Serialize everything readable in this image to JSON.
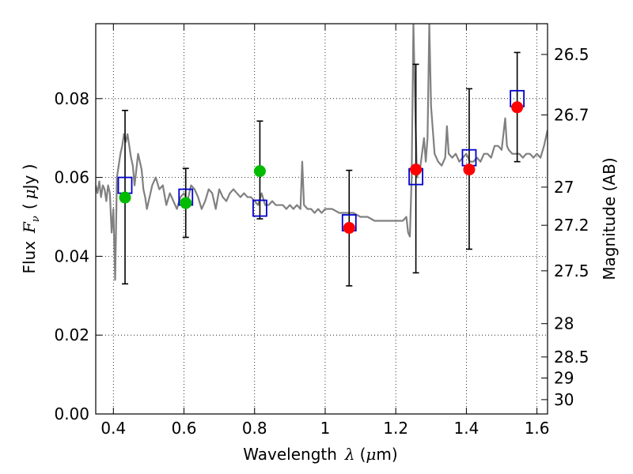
{
  "chart_data": {
    "type": "scatter",
    "x_label_text": "Wavelength",
    "x_label_symbol": "λ",
    "x_label_unit_open": "(",
    "x_label_unit_mu": "μ",
    "x_label_unit_rest": "m)",
    "y_label_text": "Flux",
    "y_label_symbol": "F",
    "y_label_sub": "ν",
    "y_label_unit_open": "(",
    "y_label_unit_mu": "μ",
    "y_label_unit_rest": "Jy )",
    "y2_label": "Magnitude (AB)",
    "xlim": [
      0.35,
      1.63
    ],
    "ylim": [
      0.0,
      0.099
    ],
    "grid": true,
    "x_ticks": [
      {
        "value": 0.4,
        "label": "0.4"
      },
      {
        "value": 0.6,
        "label": "0.6"
      },
      {
        "value": 0.8,
        "label": "0.8"
      },
      {
        "value": 1.0,
        "label": "1"
      },
      {
        "value": 1.2,
        "label": "1.2"
      },
      {
        "value": 1.4,
        "label": "1.4"
      },
      {
        "value": 1.6,
        "label": "1.6"
      }
    ],
    "y_ticks": [
      {
        "value": 0.0,
        "label": "0.00"
      },
      {
        "value": 0.02,
        "label": "0.02"
      },
      {
        "value": 0.04,
        "label": "0.04"
      },
      {
        "value": 0.06,
        "label": "0.06"
      },
      {
        "value": 0.08,
        "label": "0.08"
      }
    ],
    "mag_ticks": [
      {
        "mag": 26.5,
        "label": "26.5"
      },
      {
        "mag": 26.7,
        "label": "26.7"
      },
      {
        "mag": 27.0,
        "label": "27"
      },
      {
        "mag": 27.2,
        "label": "27.2"
      },
      {
        "mag": 27.5,
        "label": "27.5"
      },
      {
        "mag": 28.0,
        "label": "28"
      },
      {
        "mag": 28.5,
        "label": "28.5"
      },
      {
        "mag": 29.0,
        "label": "29"
      },
      {
        "mag": 30.0,
        "label": "30"
      }
    ],
    "colors": {
      "spectrum": "#808080",
      "model_box": "#0000cc",
      "detection": "#ff0000",
      "upper": "#00bb00",
      "errorbar": "#000000"
    },
    "spectrum": [
      [
        0.35,
        0.058
      ],
      [
        0.355,
        0.056
      ],
      [
        0.36,
        0.059
      ],
      [
        0.365,
        0.055
      ],
      [
        0.37,
        0.058
      ],
      [
        0.375,
        0.057
      ],
      [
        0.38,
        0.054
      ],
      [
        0.385,
        0.058
      ],
      [
        0.39,
        0.056
      ],
      [
        0.395,
        0.046
      ],
      [
        0.4,
        0.052
      ],
      [
        0.405,
        0.034
      ],
      [
        0.41,
        0.06
      ],
      [
        0.415,
        0.063
      ],
      [
        0.42,
        0.066
      ],
      [
        0.425,
        0.068
      ],
      [
        0.43,
        0.071
      ],
      [
        0.435,
        0.069
      ],
      [
        0.44,
        0.071
      ],
      [
        0.445,
        0.068
      ],
      [
        0.45,
        0.065
      ],
      [
        0.455,
        0.063
      ],
      [
        0.46,
        0.058
      ],
      [
        0.465,
        0.062
      ],
      [
        0.47,
        0.066
      ],
      [
        0.475,
        0.064
      ],
      [
        0.48,
        0.062
      ],
      [
        0.485,
        0.057
      ],
      [
        0.49,
        0.055
      ],
      [
        0.495,
        0.052
      ],
      [
        0.5,
        0.054
      ],
      [
        0.51,
        0.058
      ],
      [
        0.52,
        0.06
      ],
      [
        0.53,
        0.057
      ],
      [
        0.54,
        0.058
      ],
      [
        0.55,
        0.053
      ],
      [
        0.56,
        0.056
      ],
      [
        0.57,
        0.054
      ],
      [
        0.58,
        0.052
      ],
      [
        0.59,
        0.055
      ],
      [
        0.6,
        0.056
      ],
      [
        0.61,
        0.054
      ],
      [
        0.62,
        0.058
      ],
      [
        0.63,
        0.057
      ],
      [
        0.64,
        0.055
      ],
      [
        0.65,
        0.052
      ],
      [
        0.66,
        0.054
      ],
      [
        0.67,
        0.057
      ],
      [
        0.68,
        0.056
      ],
      [
        0.69,
        0.052
      ],
      [
        0.7,
        0.057
      ],
      [
        0.71,
        0.055
      ],
      [
        0.72,
        0.054
      ],
      [
        0.73,
        0.056
      ],
      [
        0.74,
        0.057
      ],
      [
        0.75,
        0.056
      ],
      [
        0.76,
        0.055
      ],
      [
        0.77,
        0.056
      ],
      [
        0.78,
        0.055
      ],
      [
        0.79,
        0.055
      ],
      [
        0.8,
        0.054
      ],
      [
        0.81,
        0.053
      ],
      [
        0.82,
        0.056
      ],
      [
        0.83,
        0.053
      ],
      [
        0.84,
        0.053
      ],
      [
        0.85,
        0.054
      ],
      [
        0.86,
        0.053
      ],
      [
        0.87,
        0.053
      ],
      [
        0.88,
        0.053
      ],
      [
        0.89,
        0.052
      ],
      [
        0.9,
        0.053
      ],
      [
        0.91,
        0.052
      ],
      [
        0.92,
        0.053
      ],
      [
        0.93,
        0.052
      ],
      [
        0.935,
        0.064
      ],
      [
        0.94,
        0.053
      ],
      [
        0.95,
        0.052
      ],
      [
        0.96,
        0.052
      ],
      [
        0.97,
        0.051
      ],
      [
        0.98,
        0.052
      ],
      [
        0.99,
        0.051
      ],
      [
        1.0,
        0.052
      ],
      [
        1.02,
        0.052
      ],
      [
        1.04,
        0.051
      ],
      [
        1.06,
        0.051
      ],
      [
        1.08,
        0.051
      ],
      [
        1.1,
        0.05
      ],
      [
        1.12,
        0.05
      ],
      [
        1.14,
        0.049
      ],
      [
        1.16,
        0.049
      ],
      [
        1.18,
        0.049
      ],
      [
        1.2,
        0.049
      ],
      [
        1.22,
        0.049
      ],
      [
        1.23,
        0.05
      ],
      [
        1.235,
        0.046
      ],
      [
        1.24,
        0.045
      ],
      [
        1.245,
        0.06
      ],
      [
        1.25,
        0.099
      ],
      [
        1.255,
        0.078
      ],
      [
        1.26,
        0.06
      ],
      [
        1.27,
        0.063
      ],
      [
        1.28,
        0.07
      ],
      [
        1.285,
        0.064
      ],
      [
        1.29,
        0.07
      ],
      [
        1.295,
        0.099
      ],
      [
        1.3,
        0.078
      ],
      [
        1.31,
        0.066
      ],
      [
        1.32,
        0.064
      ],
      [
        1.33,
        0.063
      ],
      [
        1.34,
        0.065
      ],
      [
        1.345,
        0.073
      ],
      [
        1.35,
        0.066
      ],
      [
        1.36,
        0.065
      ],
      [
        1.37,
        0.066
      ],
      [
        1.38,
        0.064
      ],
      [
        1.39,
        0.065
      ],
      [
        1.4,
        0.066
      ],
      [
        1.41,
        0.064
      ],
      [
        1.42,
        0.064
      ],
      [
        1.43,
        0.065
      ],
      [
        1.44,
        0.064
      ],
      [
        1.45,
        0.066
      ],
      [
        1.46,
        0.066
      ],
      [
        1.47,
        0.065
      ],
      [
        1.48,
        0.068
      ],
      [
        1.49,
        0.068
      ],
      [
        1.5,
        0.067
      ],
      [
        1.51,
        0.075
      ],
      [
        1.515,
        0.068
      ],
      [
        1.52,
        0.067
      ],
      [
        1.53,
        0.066
      ],
      [
        1.54,
        0.066
      ],
      [
        1.55,
        0.066
      ],
      [
        1.56,
        0.065
      ],
      [
        1.57,
        0.066
      ],
      [
        1.58,
        0.066
      ],
      [
        1.59,
        0.065
      ],
      [
        1.6,
        0.066
      ],
      [
        1.61,
        0.065
      ],
      [
        1.62,
        0.068
      ],
      [
        1.63,
        0.072
      ]
    ],
    "points": [
      {
        "x": 0.433,
        "y": 0.0549,
        "err_low": 0.033,
        "err_high": 0.077,
        "model": 0.058,
        "kind": "upper"
      },
      {
        "x": 0.605,
        "y": 0.0535,
        "err_low": 0.0448,
        "err_high": 0.0623,
        "model": 0.055,
        "kind": "upper"
      },
      {
        "x": 0.815,
        "y": 0.0616,
        "err_low": 0.0495,
        "err_high": 0.0743,
        "model": 0.0522,
        "kind": "upper"
      },
      {
        "x": 1.068,
        "y": 0.0472,
        "err_low": 0.0325,
        "err_high": 0.0618,
        "model": 0.0485,
        "kind": "detection"
      },
      {
        "x": 1.257,
        "y": 0.062,
        "err_low": 0.0358,
        "err_high": 0.0887,
        "model": 0.0602,
        "kind": "detection"
      },
      {
        "x": 1.408,
        "y": 0.062,
        "err_low": 0.0418,
        "err_high": 0.0825,
        "model": 0.065,
        "kind": "detection"
      },
      {
        "x": 1.544,
        "y": 0.0778,
        "err_low": 0.064,
        "err_high": 0.0917,
        "model": 0.08,
        "kind": "detection"
      }
    ]
  }
}
